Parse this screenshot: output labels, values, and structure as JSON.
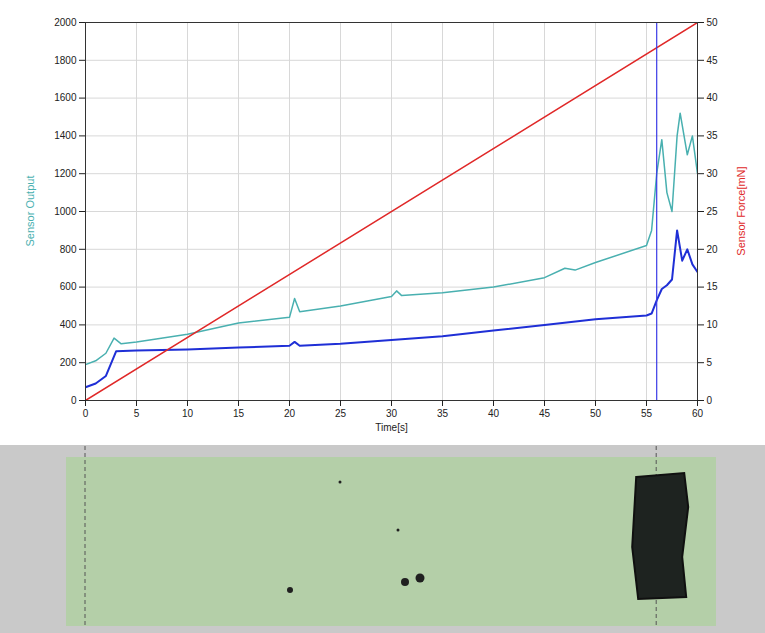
{
  "chart_data": {
    "type": "line",
    "xlabel": "Time[s]",
    "ylabel": "Sensor Output",
    "y2label": "Sensor Force[mN]",
    "xlim": [
      0,
      60
    ],
    "xticks": [
      0,
      5,
      10,
      15,
      20,
      25,
      30,
      35,
      40,
      45,
      50,
      55,
      60
    ],
    "ylim": [
      0,
      2000
    ],
    "yticks": [
      0,
      200,
      400,
      600,
      800,
      1000,
      1200,
      1400,
      1600,
      1800,
      2000
    ],
    "y2lim": [
      0,
      50
    ],
    "y2ticks": [
      0,
      5,
      10,
      15,
      20,
      25,
      30,
      35,
      40,
      45,
      50
    ],
    "grid": true,
    "series": [
      {
        "color": "#49b0b0",
        "x": [
          0,
          1,
          2,
          2.8,
          3.5,
          5,
          10,
          15,
          20,
          20.5,
          21,
          25,
          30,
          30.5,
          31,
          35,
          40,
          45,
          47,
          48,
          50,
          55,
          55.5,
          56,
          56.5,
          57,
          57.5,
          58,
          58.3,
          59,
          59.5,
          60
        ],
        "values": [
          190,
          210,
          250,
          330,
          300,
          310,
          350,
          410,
          440,
          540,
          470,
          500,
          550,
          580,
          555,
          570,
          600,
          650,
          700,
          690,
          730,
          820,
          900,
          1200,
          1380,
          1100,
          1000,
          1400,
          1520,
          1300,
          1400,
          1200
        ]
      },
      {
        "color": "#1f2fd6",
        "x": [
          0,
          1,
          2,
          3,
          5,
          10,
          15,
          20,
          20.5,
          21,
          25,
          30,
          35,
          40,
          45,
          50,
          55,
          55.5,
          56,
          56.5,
          57,
          57.5,
          58,
          58.5,
          59,
          59.5,
          60
        ],
        "values": [
          70,
          90,
          130,
          260,
          265,
          270,
          280,
          290,
          310,
          290,
          300,
          320,
          340,
          370,
          400,
          430,
          450,
          460,
          530,
          590,
          610,
          640,
          900,
          740,
          800,
          720,
          680
        ]
      },
      {
        "color": "#e02828",
        "axis": "y2",
        "x": [
          0,
          60
        ],
        "values": [
          0,
          50
        ]
      }
    ],
    "vlines": [
      {
        "x": 56,
        "color": "#3a3ae6"
      }
    ]
  }
}
